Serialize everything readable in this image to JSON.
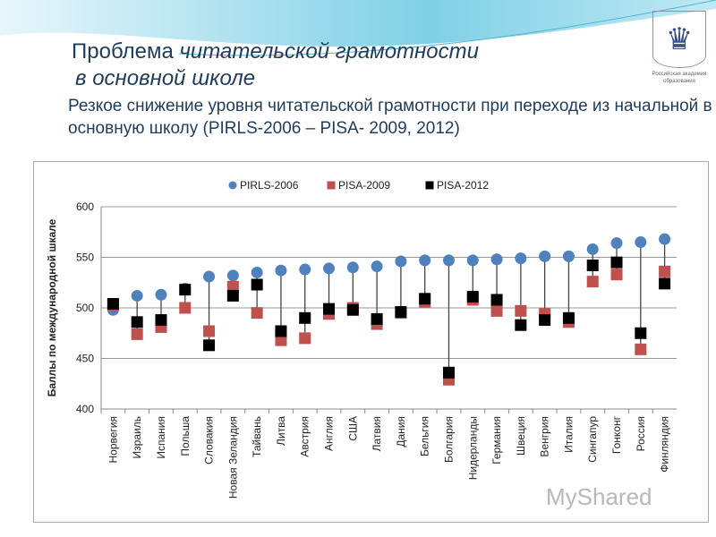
{
  "title_plain": "Проблема ",
  "title_italic": "читательской грамотности",
  "title_line2": "в основной школе",
  "subtitle": "Резкое снижение уровня читательской грамотности при переходе из начальной в основную школу (PIRLS-2006 – PISA- 2009, 2012)",
  "logo": {
    "caption": "Российская академия образования",
    "icon": "russian-coat-of-arms"
  },
  "watermark": "MyShared",
  "chart_data": {
    "type": "scatter",
    "ylabel": "Баллы по международной шкале",
    "ylim": [
      400,
      600
    ],
    "yticks": [
      400,
      450,
      500,
      550,
      600
    ],
    "grid": true,
    "legend_position": "top",
    "categories": [
      "Норвегия",
      "Израиль",
      "Испания",
      "Польша",
      "Словакия",
      "Новая Зеландия",
      "Тайвань",
      "Литва",
      "Австрия",
      "Англия",
      "США",
      "Латвия",
      "Дания",
      "Бельгия",
      "Болгария",
      "Нидерланды",
      "Германия",
      "Швеция",
      "Венгрия",
      "Италия",
      "Сингапур",
      "Гонконг",
      "Россия",
      "Финляндия"
    ],
    "series": [
      {
        "name": "PIRLS-2006",
        "color": "#4f81bd",
        "marker": "circle",
        "values": [
          498,
          512,
          513,
          519,
          531,
          532,
          535,
          537,
          538,
          539,
          540,
          541,
          546,
          547,
          547,
          547,
          548,
          549,
          551,
          551,
          558,
          564,
          565,
          568
        ]
      },
      {
        "name": "PISA-2009",
        "color": "#c0504d",
        "marker": "square",
        "values": [
          503,
          474,
          481,
          500,
          477,
          521,
          495,
          468,
          470,
          494,
          500,
          484,
          495,
          506,
          429,
          508,
          497,
          497,
          494,
          486,
          526,
          533,
          459,
          536
        ]
      },
      {
        "name": "PISA-2012",
        "color": "#000000",
        "marker": "square",
        "values": [
          504,
          486,
          488,
          518,
          463,
          512,
          523,
          477,
          490,
          499,
          498,
          489,
          496,
          509,
          436,
          511,
          508,
          483,
          488,
          490,
          542,
          545,
          475,
          524
        ]
      }
    ]
  }
}
